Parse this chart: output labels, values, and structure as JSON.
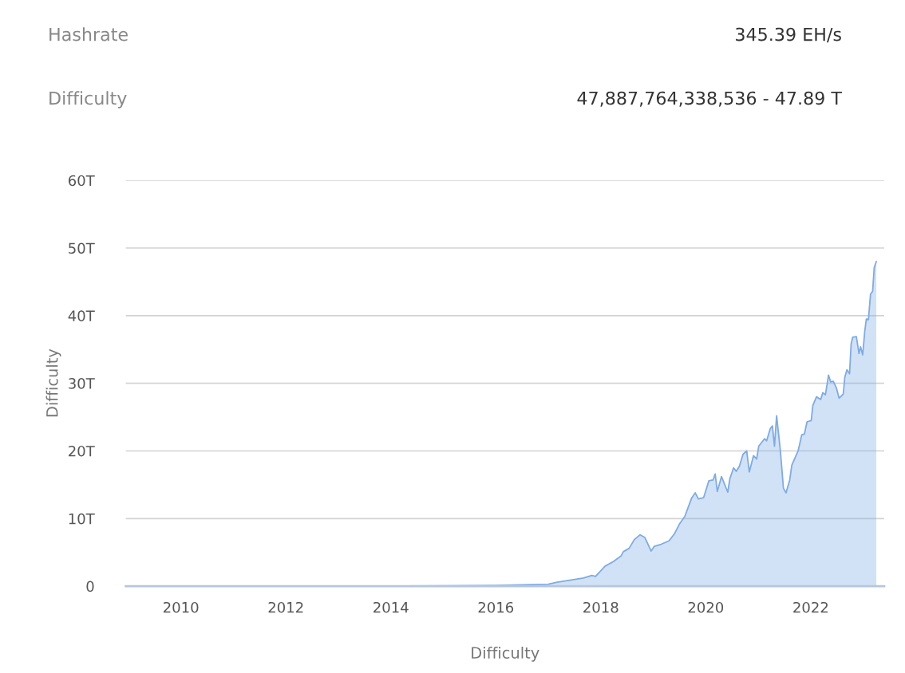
{
  "chart_data": {
    "type": "area",
    "xlabel": "Difficulty",
    "ylabel": "Difficulty",
    "annotations": [
      "Hashrate",
      "345.39 EH/s",
      "Difficulty",
      "47,887,764,338,536 - 47.89 T"
    ],
    "x": [
      2009.0,
      2011.0,
      2013.0,
      2014.0,
      2015.0,
      2016.0,
      2016.5,
      2017.0,
      2017.17,
      2017.67,
      2017.83,
      2017.9,
      2018.08,
      2018.24,
      2018.39,
      2018.43,
      2018.54,
      2018.64,
      2018.75,
      2018.84,
      2018.96,
      2019.02,
      2019.15,
      2019.3,
      2019.4,
      2019.5,
      2019.6,
      2019.73,
      2019.8,
      2019.86,
      2019.96,
      2020.06,
      2020.14,
      2020.18,
      2020.22,
      2020.3,
      2020.42,
      2020.46,
      2020.53,
      2020.58,
      2020.64,
      2020.71,
      2020.78,
      2020.83,
      2020.91,
      2020.97,
      2021.01,
      2021.12,
      2021.16,
      2021.23,
      2021.27,
      2021.31,
      2021.35,
      2021.42,
      2021.48,
      2021.53,
      2021.6,
      2021.64,
      2021.76,
      2021.83,
      2021.88,
      2021.93,
      2022.01,
      2022.04,
      2022.11,
      2022.19,
      2022.23,
      2022.28,
      2022.34,
      2022.38,
      2022.43,
      2022.49,
      2022.54,
      2022.62,
      2022.65,
      2022.69,
      2022.74,
      2022.77,
      2022.8,
      2022.87,
      2022.92,
      2022.95,
      2022.99,
      2023.03,
      2023.06,
      2023.1,
      2023.14,
      2023.18,
      2023.21,
      2023.25
    ],
    "series": [
      {
        "color": "#7eabe6",
        "values": [
          0.0,
          0.0,
          0.01,
          0.02,
          0.05,
          0.1,
          0.2,
          0.3,
          0.6,
          1.2,
          1.6,
          1.45,
          2.95,
          3.65,
          4.5,
          5.1,
          5.6,
          6.9,
          7.6,
          7.2,
          5.2,
          5.9,
          6.2,
          6.7,
          7.7,
          9.2,
          10.3,
          13.0,
          13.8,
          12.9,
          13.1,
          15.6,
          15.7,
          16.6,
          14.0,
          16.2,
          13.9,
          15.9,
          17.5,
          17.0,
          17.7,
          19.5,
          20.0,
          16.9,
          19.3,
          18.8,
          20.7,
          21.8,
          21.5,
          23.3,
          23.7,
          20.7,
          25.2,
          20.2,
          14.5,
          13.8,
          15.7,
          17.9,
          20.0,
          22.4,
          22.5,
          24.3,
          24.5,
          26.7,
          28.0,
          27.6,
          28.6,
          28.3,
          31.2,
          30.2,
          30.3,
          29.3,
          27.8,
          28.4,
          30.9,
          32.0,
          31.4,
          35.8,
          36.8,
          36.9,
          34.4,
          35.4,
          34.2,
          37.7,
          39.5,
          39.4,
          43.2,
          43.6,
          47.1,
          48.0
        ]
      }
    ],
    "xlim": [
      2008.95,
      2023.4
    ],
    "ylim": [
      0,
      60
    ],
    "xticks": [
      2010,
      2012,
      2014,
      2016,
      2018,
      2020,
      2022
    ],
    "yticks": [
      0,
      {
        "value": 10,
        "label": "10T"
      },
      {
        "value": 20,
        "label": "20T"
      },
      {
        "value": 30,
        "label": "30T"
      },
      {
        "value": 40,
        "label": "40T"
      },
      {
        "value": 50,
        "label": "50T"
      },
      {
        "value": 60,
        "label": "60T"
      }
    ],
    "grid": "y",
    "legend": false
  }
}
